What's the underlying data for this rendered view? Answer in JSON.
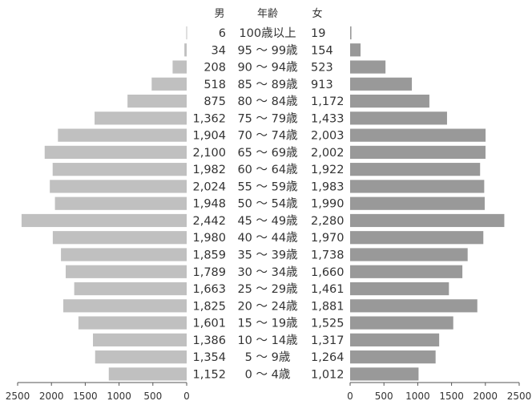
{
  "chart_data": {
    "type": "bar",
    "headers": {
      "male": "男",
      "age": "年齢",
      "female": "女"
    },
    "categories": [
      "100歳以上",
      "95 ～ 99歳",
      "90 ～ 94歳",
      "85 ～ 89歳",
      "80 ～ 84歳",
      "75 ～ 79歳",
      "70 ～ 74歳",
      "65 ～ 69歳",
      "60 ～ 64歳",
      "55 ～ 59歳",
      "50 ～ 54歳",
      "45 ～ 49歳",
      "40 ～ 44歳",
      "35 ～ 39歳",
      "30 ～ 34歳",
      "25 ～ 29歳",
      "20 ～ 24歳",
      "15 ～ 19歳",
      "10 ～ 14歳",
      "5 ～ 9歳",
      "0 ～ 4歳"
    ],
    "series": [
      {
        "name": "男",
        "color": "#c0c0c0",
        "values": [
          6,
          34,
          208,
          518,
          875,
          1362,
          1904,
          2100,
          1982,
          2024,
          1948,
          2442,
          1980,
          1859,
          1789,
          1663,
          1825,
          1601,
          1386,
          1354,
          1152
        ]
      },
      {
        "name": "女",
        "color": "#999999",
        "values": [
          19,
          154,
          523,
          913,
          1172,
          1433,
          2003,
          2002,
          1922,
          1983,
          1990,
          2280,
          1970,
          1738,
          1660,
          1461,
          1881,
          1525,
          1317,
          1264,
          1012
        ]
      }
    ],
    "value_labels_male": [
      "6",
      "34",
      "208",
      "518",
      "875",
      "1,362",
      "1,904",
      "2,100",
      "1,982",
      "2,024",
      "1,948",
      "2,442",
      "1,980",
      "1,859",
      "1,789",
      "1,663",
      "1,825",
      "1,601",
      "1,386",
      "1,354",
      "1,152"
    ],
    "value_labels_female": [
      "19",
      "154",
      "523",
      "913",
      "1,172",
      "1,433",
      "2,003",
      "2,002",
      "1,922",
      "1,983",
      "1,990",
      "2,280",
      "1,970",
      "1,738",
      "1,660",
      "1,461",
      "1,881",
      "1,525",
      "1,317",
      "1,264",
      "1,012"
    ],
    "xlim": [
      0,
      2500
    ],
    "xticks": [
      0,
      500,
      1000,
      1500,
      2000,
      2500
    ],
    "xtick_labels": [
      "0",
      "500",
      "1000",
      "1500",
      "2000",
      "2500"
    ],
    "grid": false,
    "legend": "none"
  }
}
